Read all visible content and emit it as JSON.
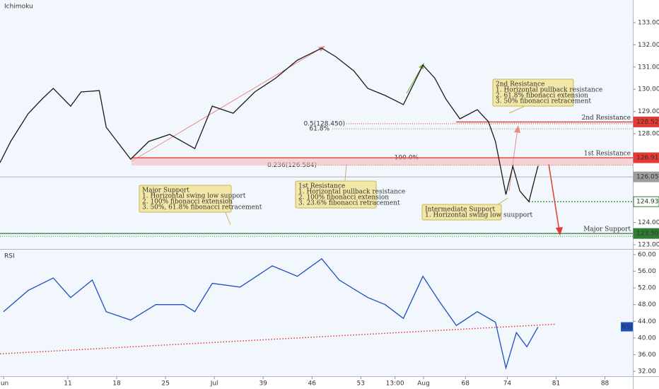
{
  "chart_data": [
    {
      "type": "line",
      "title": "Ichimoku",
      "color": "#1a1a1a",
      "x": [
        1.27,
        2.8,
        5.3,
        7.3,
        8.9,
        11.4,
        12.9,
        15.5,
        16.5,
        20,
        22.6,
        25.6,
        29.2,
        31.7,
        34.7,
        37.8,
        40.8,
        43.9,
        47.4,
        49.4,
        52,
        54,
        56.5,
        59.1,
        61.9,
        63.6,
        65.2,
        67.2,
        69.7,
        71.3,
        72.3,
        73.8,
        74.8,
        75.8,
        77.1,
        78.4
      ],
      "values": [
        126.7,
        127.65,
        128.9,
        129.56,
        130.04,
        129.24,
        129.88,
        129.94,
        128.29,
        126.85,
        127.65,
        127.97,
        127.33,
        129.24,
        128.92,
        129.88,
        130.5,
        131.31,
        131.85,
        131.47,
        130.83,
        130.04,
        129.72,
        129.31,
        131.09,
        130.5,
        129.56,
        128.67,
        129.08,
        128.54,
        127.65,
        125.26,
        126.54,
        125.42,
        124.94,
        126.54
      ],
      "xlim": [
        1.27,
        92.0
      ],
      "ylim": [
        122.81,
        134.02
      ],
      "yticks": [
        {
          "value": 123,
          "label": "123.000"
        },
        {
          "value": 124,
          "label": "124.000"
        },
        {
          "value": 125,
          "label": "125.000"
        },
        {
          "value": 126,
          "label": "126.000"
        },
        {
          "value": 127,
          "label": "127.000"
        },
        {
          "value": 128,
          "label": "128.000"
        },
        {
          "value": 129,
          "label": "129.000"
        },
        {
          "value": 130,
          "label": "130.000"
        },
        {
          "value": 131,
          "label": "131.000"
        },
        {
          "value": 132,
          "label": "132.000"
        },
        {
          "value": 133,
          "label": "133.000"
        }
      ],
      "levels": [
        {
          "label": "2nd Resistance",
          "value": 128.529,
          "color": "#e53935"
        },
        {
          "label": "1st Resistance",
          "value": 126.917,
          "color": "#e53935"
        },
        {
          "value": 126.055,
          "color": "#9e9e9e"
        },
        {
          "value": 124.939,
          "color": "#2e7d32"
        },
        {
          "label": "Major Support",
          "value": 123.507,
          "color": "#2e7d32"
        }
      ],
      "fib_levels": [
        {
          "label": "0.5(128.450)",
          "value": 128.45,
          "color": "#e53935"
        },
        {
          "label": "61.8%",
          "value": 128.22,
          "color": "#9e9d24"
        },
        {
          "label": "0.236(126.584)",
          "value": 126.584,
          "color": "#e53935"
        },
        {
          "label": "100.0%",
          "value": 126.917,
          "color": "#f3a8a8"
        }
      ],
      "annotations": [
        {
          "lines": [
            "2nd Resistance",
            "1. Horizontal pullback resistance",
            "2. 61.8% fibonacci extension",
            "3. 50% fibonacci retracement"
          ]
        },
        {
          "lines": [
            "1st Resistance",
            "1. Horizontal pullback resistance",
            "2. 100% fibonacci extension",
            "3. 23.6% fibonacci retracement"
          ]
        },
        {
          "lines": [
            "Major Support",
            "1. Horizontal swing low support",
            "2. 100% fibonacci extension",
            "3. 50%, 61.8% fibonacci retracement"
          ]
        },
        {
          "lines": [
            "Intermediate Support",
            "1. Horizontal swing low suupport"
          ]
        }
      ]
    },
    {
      "type": "line",
      "title": "RSI",
      "color": "#1e4fbf",
      "x": [
        1.77,
        5.3,
        8.9,
        11.4,
        14.5,
        16.5,
        20,
        23.6,
        27.6,
        29.2,
        31.7,
        35.7,
        40.3,
        43.9,
        47.4,
        49.9,
        54,
        56.5,
        59.1,
        61.9,
        64.2,
        66.7,
        69.7,
        72.3,
        73.8,
        75.3,
        76.8,
        78.4
      ],
      "values": [
        46.3,
        51.4,
        54.4,
        49.7,
        53.9,
        46.3,
        44.3,
        48.0,
        48.0,
        46.3,
        53.1,
        52.2,
        57.3,
        54.8,
        59.0,
        53.9,
        49.7,
        48.0,
        44.7,
        54.8,
        48.9,
        43.0,
        46.3,
        43.8,
        32.8,
        41.3,
        37.9,
        42.6
      ],
      "trendline": {
        "x": [
          1.27,
          80.9
        ],
        "values": [
          36.2,
          43.3
        ],
        "color": "#e53935"
      },
      "xlim": [
        1.27,
        92.0
      ],
      "ylim": [
        30.82,
        61.18
      ],
      "xticks": [
        {
          "value": 1.8,
          "label": "Jun"
        },
        11,
        18,
        25,
        {
          "value": 32,
          "label": "Jul"
        },
        39,
        46,
        53,
        {
          "value": 57.9,
          "label": "13:00"
        },
        {
          "value": 62,
          "label": "Aug"
        },
        68,
        74,
        81,
        88
      ],
      "yticks": [
        {
          "value": 32,
          "label": "32.00"
        },
        {
          "value": 36,
          "label": "36.00"
        },
        {
          "value": 40,
          "label": "40.00"
        },
        {
          "value": 44,
          "label": "44.00"
        },
        {
          "value": 48,
          "label": "48.00"
        },
        {
          "value": 52,
          "label": "52.00"
        },
        {
          "value": 56,
          "label": "56.00"
        },
        {
          "value": 60,
          "label": "60.00"
        }
      ]
    }
  ]
}
